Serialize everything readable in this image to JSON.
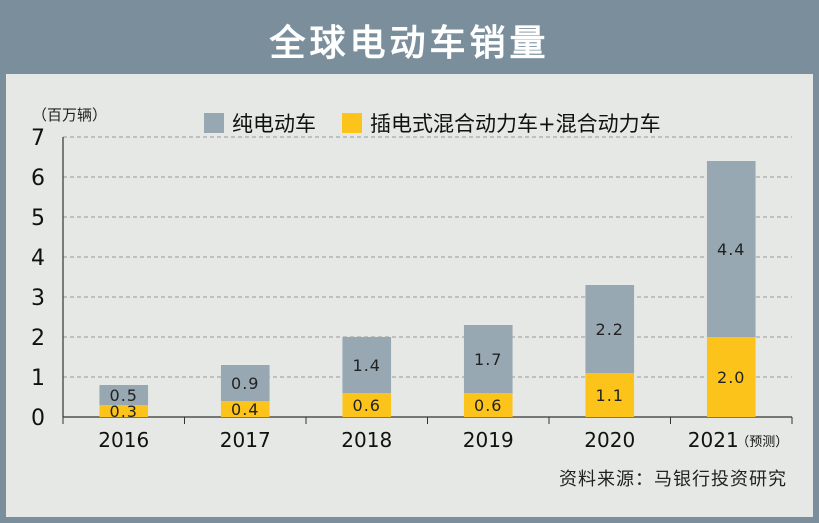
{
  "title": "全球电动车销量",
  "unit_label": "（百万辆）",
  "source": "资料来源：马银行投资研究",
  "colors": {
    "bev": "#97a8b2",
    "phev": "#fcc41b",
    "frame": "#7a8f9b"
  },
  "chart_data": {
    "type": "bar",
    "stacked": true,
    "categories": [
      "2016",
      "2017",
      "2018",
      "2019",
      "2020",
      "2021"
    ],
    "category_notes": [
      "",
      "",
      "",
      "",
      "",
      "（预测）"
    ],
    "series": [
      {
        "name": "插电式混合动力车+混合动力车",
        "values": [
          0.3,
          0.4,
          0.6,
          0.6,
          1.1,
          2.0
        ],
        "color": "#fcc41b"
      },
      {
        "name": "纯电动车",
        "values": [
          0.5,
          0.9,
          1.4,
          1.7,
          2.2,
          4.4
        ],
        "color": "#97a8b2"
      }
    ],
    "value_labels": [
      [
        "0.3",
        "0.4",
        "0.6",
        "0.6",
        "1.1",
        "2.0"
      ],
      [
        "0.5",
        "0.9",
        "1.4",
        "1.7",
        "2.2",
        "4.4"
      ]
    ],
    "ylim": [
      0,
      7
    ],
    "yticks": [
      0,
      1,
      2,
      3,
      4,
      5,
      6,
      7
    ],
    "grid": true,
    "legend_position": "top"
  }
}
